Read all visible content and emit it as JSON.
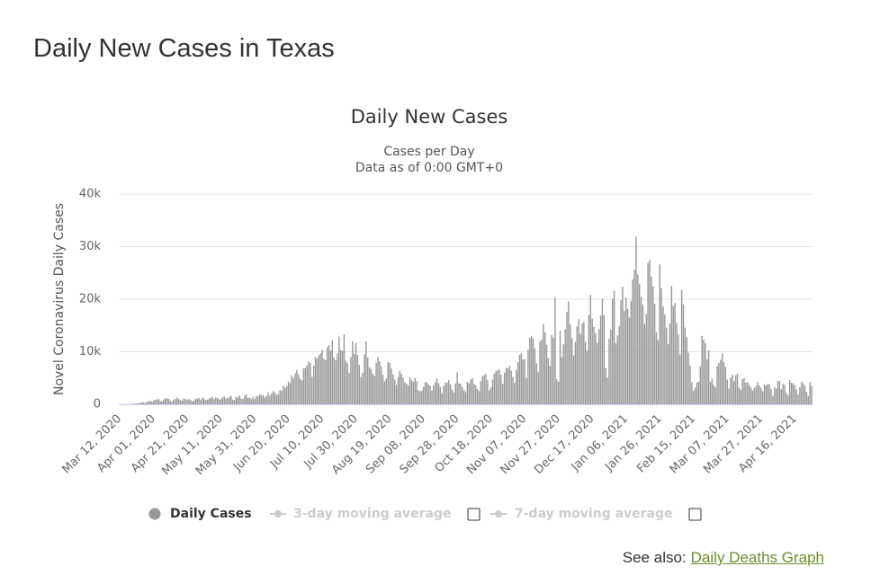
{
  "page_title": "Daily New Cases in Texas",
  "chart_data": {
    "type": "bar",
    "title": "Daily New Cases",
    "subtitle": [
      "Cases per Day",
      "Data as of 0:00 GMT+0"
    ],
    "y_label": "Novel Coronavirus Daily Cases",
    "ylim": [
      0,
      40000
    ],
    "yticks": [
      0,
      {
        "value": 10000,
        "label": "10k"
      },
      {
        "value": 20000,
        "label": "20k"
      },
      {
        "value": 30000,
        "label": "30k"
      },
      {
        "value": 40000,
        "label": "40k"
      }
    ],
    "grid": true,
    "categories": [
      "Mar 12, 2020",
      null,
      null,
      null,
      null,
      null,
      null,
      null,
      null,
      null,
      null,
      null,
      null,
      null,
      null,
      null,
      null,
      null,
      null,
      null,
      "Apr 01, 2020",
      null,
      null,
      null,
      null,
      null,
      null,
      null,
      null,
      null,
      null,
      null,
      null,
      null,
      null,
      null,
      null,
      null,
      null,
      null,
      "Apr 21, 2020",
      null,
      null,
      null,
      null,
      null,
      null,
      null,
      null,
      null,
      null,
      null,
      null,
      null,
      null,
      null,
      null,
      null,
      null,
      null,
      "May 11, 2020",
      null,
      null,
      null,
      null,
      null,
      null,
      null,
      null,
      null,
      null,
      null,
      null,
      null,
      null,
      null,
      null,
      null,
      null,
      null,
      "May 31, 2020",
      null,
      null,
      null,
      null,
      null,
      null,
      null,
      null,
      null,
      null,
      null,
      null,
      null,
      null,
      null,
      null,
      null,
      null,
      null,
      "Jun 20, 2020",
      null,
      null,
      null,
      null,
      null,
      null,
      null,
      null,
      null,
      null,
      null,
      null,
      null,
      null,
      null,
      null,
      null,
      null,
      null,
      "Jul 10, 2020",
      null,
      null,
      null,
      null,
      null,
      null,
      null,
      null,
      null,
      null,
      null,
      null,
      null,
      null,
      null,
      null,
      null,
      null,
      null,
      "Jul 30, 2020",
      null,
      null,
      null,
      null,
      null,
      null,
      null,
      null,
      null,
      null,
      null,
      null,
      null,
      null,
      null,
      null,
      null,
      null,
      null,
      "Aug 19, 2020",
      null,
      null,
      null,
      null,
      null,
      null,
      null,
      null,
      null,
      null,
      null,
      null,
      null,
      null,
      null,
      null,
      null,
      null,
      null,
      "Sep 08, 2020",
      null,
      null,
      null,
      null,
      null,
      null,
      null,
      null,
      null,
      null,
      null,
      null,
      null,
      null,
      null,
      null,
      null,
      null,
      null,
      "Sep 28, 2020",
      null,
      null,
      null,
      null,
      null,
      null,
      null,
      null,
      null,
      null,
      null,
      null,
      null,
      null,
      null,
      null,
      null,
      null,
      null,
      "Oct 18, 2020",
      null,
      null,
      null,
      null,
      null,
      null,
      null,
      null,
      null,
      null,
      null,
      null,
      null,
      null,
      null,
      null,
      null,
      null,
      null,
      "Nov 07, 2020",
      null,
      null,
      null,
      null,
      null,
      null,
      null,
      null,
      null,
      null,
      null,
      null,
      null,
      null,
      null,
      null,
      null,
      null,
      null,
      "Nov 27, 2020",
      null,
      null,
      null,
      null,
      null,
      null,
      null,
      null,
      null,
      null,
      null,
      null,
      null,
      null,
      null,
      null,
      null,
      null,
      null,
      "Dec 17, 2020",
      null,
      null,
      null,
      null,
      null,
      null,
      null,
      null,
      null,
      null,
      null,
      null,
      null,
      null,
      null,
      null,
      null,
      null,
      null,
      "Jan 06, 2021",
      null,
      null,
      null,
      null,
      null,
      null,
      null,
      null,
      null,
      null,
      null,
      null,
      null,
      null,
      null,
      null,
      null,
      null,
      null,
      "Jan 26, 2021",
      null,
      null,
      null,
      null,
      null,
      null,
      null,
      null,
      null,
      null,
      null,
      null,
      null,
      null,
      null,
      null,
      null,
      null,
      null,
      "Feb 15, 2021",
      null,
      null,
      null,
      null,
      null,
      null,
      null,
      null,
      null,
      null,
      null,
      null,
      null,
      null,
      null,
      null,
      null,
      null,
      null,
      "Mar 07, 2021",
      null,
      null,
      null,
      null,
      null,
      null,
      null,
      null,
      null,
      null,
      null,
      null,
      null,
      null,
      null,
      null,
      null,
      null,
      null,
      "Mar 27, 2021",
      null,
      null,
      null,
      null,
      null,
      null,
      null,
      null,
      null,
      null,
      null,
      null,
      null,
      null,
      null,
      null,
      null,
      null,
      null,
      "Apr 16, 2021",
      null,
      null,
      null,
      null,
      null,
      null,
      null,
      null,
      null,
      null
    ],
    "series": [
      {
        "name": "Daily Cases",
        "color": "#999999",
        "values": [
          0,
          10,
          15,
          20,
          20,
          30,
          35,
          90,
          60,
          150,
          140,
          200,
          250,
          300,
          400,
          300,
          470,
          550,
          700,
          500,
          730,
          800,
          900,
          1000,
          700,
          600,
          900,
          1100,
          1200,
          1000,
          700,
          500,
          900,
          1000,
          1300,
          1000,
          800,
          700,
          1100,
          1000,
          900,
          1000,
          800,
          600,
          700,
          1000,
          1100,
          1200,
          900,
          1300,
          1100,
          800,
          900,
          1100,
          1200,
          1400,
          1000,
          1300,
          1200,
          900,
          1000,
          1300,
          1500,
          1100,
          1200,
          1400,
          1600,
          900,
          800,
          1400,
          1300,
          1700,
          1100,
          1000,
          1600,
          1900,
          1200,
          1300,
          1000,
          1400,
          1000,
          1600,
          1500,
          1900,
          1700,
          1800,
          1300,
          1600,
          2300,
          1700,
          2100,
          2500,
          2200,
          1800,
          1900,
          2700,
          2600,
          3500,
          3200,
          3500,
          4300,
          4000,
          5500,
          5000,
          5900,
          6500,
          5700,
          4900,
          4500,
          6900,
          6900,
          7400,
          8100,
          7900,
          5200,
          7300,
          9000,
          8700,
          9300,
          9700,
          10400,
          8700,
          8400,
          10800,
          11300,
          10200,
          12200,
          8900,
          8400,
          9700,
          12900,
          10300,
          10200,
          13300,
          8300,
          7800,
          6000,
          9000,
          12000,
          9600,
          11700,
          9400,
          7500,
          5200,
          6000,
          9500,
          12000,
          8900,
          7000,
          6700,
          5800,
          5400,
          7900,
          9000,
          8200,
          7200,
          5600,
          4400,
          4900,
          8000,
          7900,
          6800,
          5700,
          4700,
          3700,
          5200,
          6400,
          5800,
          5100,
          4200,
          3900,
          3600,
          5200,
          4600,
          4300,
          5000,
          4400,
          2700,
          2500,
          2600,
          3300,
          4200,
          4200,
          3800,
          3500,
          2600,
          3600,
          4200,
          4900,
          4000,
          3300,
          2100,
          3500,
          4100,
          4200,
          4600,
          3800,
          2800,
          2200,
          4000,
          6100,
          4000,
          3900,
          3300,
          2700,
          2300,
          4300,
          4000,
          4700,
          5000,
          3900,
          3600,
          2900,
          2500,
          4400,
          5400,
          5500,
          5800,
          4600,
          2700,
          3200,
          4700,
          5900,
          6300,
          6500,
          6600,
          5600,
          3900,
          6000,
          7000,
          6800,
          7300,
          6400,
          5200,
          4100,
          6500,
          8000,
          9400,
          9700,
          8500,
          8600,
          5000,
          10400,
          12700,
          13000,
          12500,
          10700,
          7800,
          6200,
          12000,
          12300,
          15300,
          13700,
          11300,
          8800,
          7300,
          13200,
          12700,
          20300,
          4800,
          4300,
          14000,
          9000,
          11400,
          14300,
          17600,
          19600,
          15200,
          12600,
          9300,
          11900,
          14800,
          16200,
          13400,
          15400,
          15700,
          11900,
          10200,
          17000,
          20800,
          16300,
          14700,
          13500,
          11700,
          14300,
          16900,
          20100,
          17000,
          6900,
          5100,
          12500,
          14200,
          20100,
          21600,
          11600,
          13100,
          14900,
          19800,
          22400,
          17800,
          20300,
          18200,
          16500,
          19700,
          23800,
          25600,
          31900,
          24700,
          22900,
          20400,
          18900,
          15300,
          17200,
          26900,
          27500,
          24300,
          22400,
          19100,
          13700,
          12200,
          26600,
          22100,
          18600,
          17100,
          14600,
          11500,
          15400,
          22500,
          18700,
          19300,
          15500,
          13300,
          9500,
          21800,
          19000,
          14600,
          12800,
          9800,
          7400,
          4200,
          2600,
          3200,
          4100,
          4300,
          7200,
          13000,
          12300,
          11600,
          8600,
          10300,
          4300,
          4900,
          3700,
          3200,
          7300,
          7900,
          8400,
          9700,
          8000,
          7100,
          4700,
          3000,
          5100,
          5600,
          4400,
          5500,
          5800,
          3200,
          2800,
          4800,
          5000,
          4100,
          4200,
          3700,
          3200,
          2600,
          3100,
          3500,
          4200,
          3600,
          3100,
          2500,
          3800,
          3600,
          3900,
          3800,
          2900,
          1600,
          3300,
          3000,
          4400,
          4500,
          2900,
          3900,
          3700,
          2200,
          1700,
          4600,
          4100,
          4000,
          3600,
          2800,
          1800,
          3300,
          4300,
          4000,
          3500,
          2400,
          1600,
          4200,
          3500
        ]
      }
    ],
    "hidden_series": [
      "3-day moving average",
      "7-day moving average"
    ]
  },
  "see_also": {
    "label": "See also:",
    "link": "Daily Deaths Graph"
  }
}
